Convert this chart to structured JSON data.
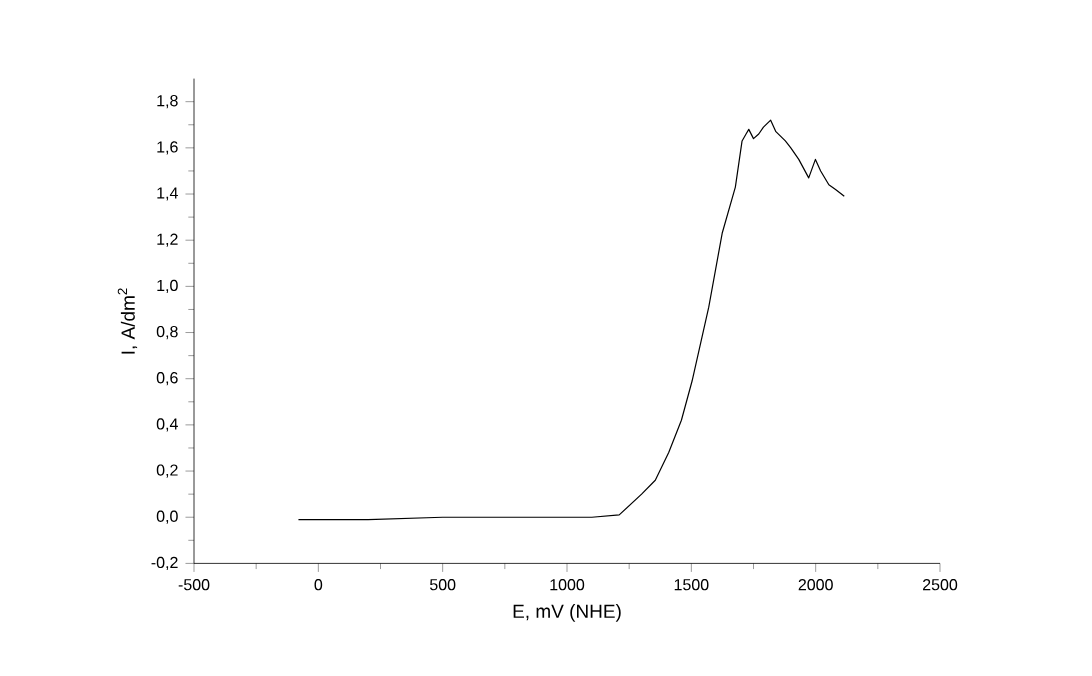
{
  "chart_data": {
    "type": "line",
    "xlabel": "E, mV (NHE)",
    "ylabel": "I, A/dm$^{2}$",
    "xlim": [
      -500,
      2500
    ],
    "ylim": [
      -0.2,
      1.9
    ],
    "xticks": [
      -500,
      0,
      500,
      1000,
      1500,
      2000,
      2500
    ],
    "yticks": [
      {
        "value": -0.2,
        "label": "-0,2"
      },
      {
        "value": 0,
        "label": "0,0"
      },
      {
        "value": 0.2,
        "label": "0,2"
      },
      {
        "value": 0.4,
        "label": "0,4"
      },
      {
        "value": 0.6,
        "label": "0,6"
      },
      {
        "value": 0.8,
        "label": "0,8"
      },
      {
        "value": 1.0,
        "label": "1,0"
      },
      {
        "value": 1.2,
        "label": "1,2"
      },
      {
        "value": 1.4,
        "label": "1,4"
      },
      {
        "value": 1.6,
        "label": "1,6"
      },
      {
        "value": 1.8,
        "label": "1,8"
      }
    ],
    "grid": false,
    "marker": "none",
    "line_style": "solid",
    "series": [
      {
        "color": "#000000",
        "x": [
          -80,
          200,
          500,
          800,
          1100,
          1210,
          1300,
          1355,
          1409,
          1460,
          1503,
          1570,
          1624,
          1677,
          1704,
          1720,
          1731,
          1750,
          1771,
          1790,
          1819,
          1840,
          1878,
          1900,
          1932,
          1972,
          1999,
          2020,
          2053,
          2080,
          2115
        ],
        "values": [
          -0.01,
          -0.01,
          0.0,
          0.0,
          0.0,
          0.01,
          0.1,
          0.16,
          0.28,
          0.42,
          0.59,
          0.91,
          1.23,
          1.43,
          1.63,
          1.66,
          1.68,
          1.64,
          1.66,
          1.69,
          1.72,
          1.67,
          1.63,
          1.6,
          1.55,
          1.47,
          1.55,
          1.5,
          1.44,
          1.42,
          1.39
        ]
      }
    ]
  }
}
